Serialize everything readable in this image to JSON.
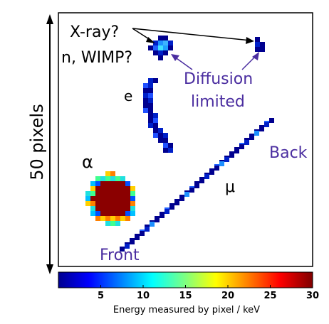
{
  "frame_label": "50 pixels",
  "annotations": {
    "xray": "X-ray?",
    "nwimp": "n, WIMP?",
    "diffusion_1": "Diffusion",
    "diffusion_2": "limited",
    "electron": "e",
    "alpha": "α",
    "muon": "μ",
    "back": "Back",
    "front": "Front"
  },
  "colorbar": {
    "label": "Energy measured by pixel / keV",
    "ticks": [
      "5",
      "10",
      "15",
      "20",
      "25",
      "30"
    ],
    "range_keV": [
      0,
      30
    ],
    "colormap": "jet"
  },
  "colors": {
    "accent_text": "#4b2ea0",
    "frame": "#000000",
    "pixel_dark": "#00008f",
    "pixel_mid": "#0020c8",
    "alpha_core": "#8b0000"
  }
}
